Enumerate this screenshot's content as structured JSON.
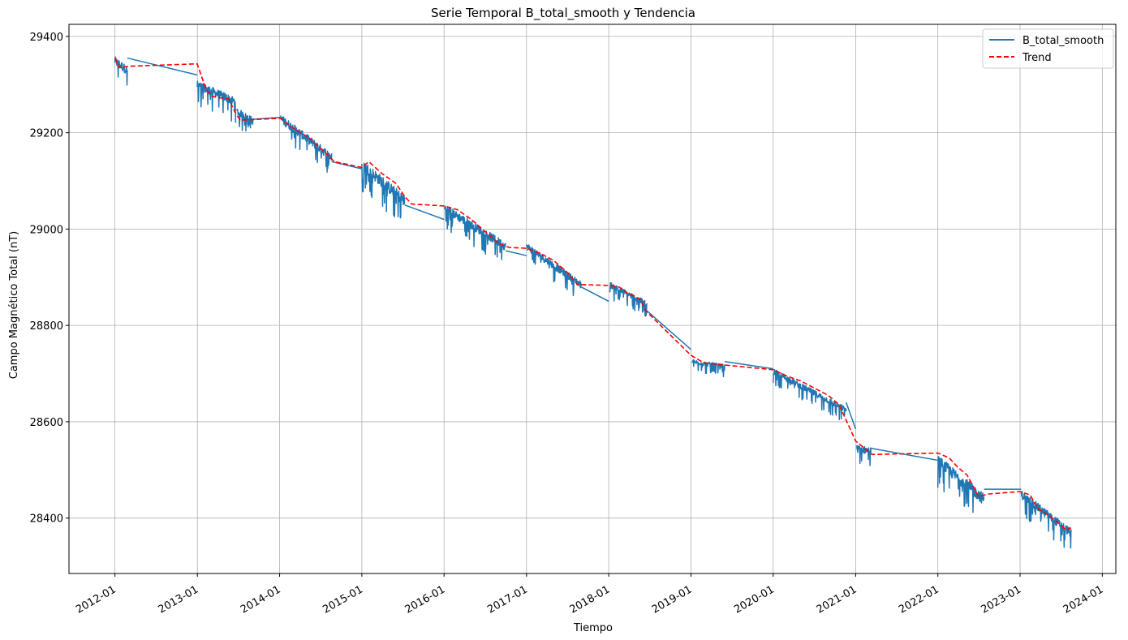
{
  "chart_data": {
    "type": "line",
    "title": "Serie Temporal B_total_smooth y Tendencia",
    "xlabel": "Tiempo",
    "ylabel": "Campo Magnético Total (nT)",
    "x_type": "date",
    "xlim": [
      "2011-06-11",
      "2024-03-01"
    ],
    "ylim": [
      28285,
      29425
    ],
    "x_ticks": [
      "2012-01",
      "2013-01",
      "2014-01",
      "2015-01",
      "2016-01",
      "2017-01",
      "2018-01",
      "2019-01",
      "2020-01",
      "2021-01",
      "2022-01",
      "2023-01",
      "2024-01"
    ],
    "y_ticks": [
      28400,
      28600,
      28800,
      29000,
      29200,
      29400
    ],
    "grid": true,
    "legend": "top-right",
    "series": [
      {
        "name": "B_total_smooth",
        "color": "#1f77b4",
        "style": "solid",
        "segments": [
          {
            "start": "2012-01-01",
            "end": "2012-02-25",
            "y_start": 29350,
            "y_end": 29330,
            "noise": 30
          },
          {
            "start": "2012-12-31",
            "end": "2013-06-20",
            "y_start": 29300,
            "y_end": 29265,
            "noise": 30
          },
          {
            "start": "2013-06-25",
            "end": "2013-09-05",
            "y_start": 29245,
            "y_end": 29225,
            "noise": 25
          },
          {
            "start": "2014-01-06",
            "end": "2014-08-20",
            "y_start": 29230,
            "y_end": 29150,
            "noise": 30
          },
          {
            "start": "2015-01-01",
            "end": "2015-07-10",
            "y_start": 29135,
            "y_end": 29060,
            "noise": 40
          },
          {
            "start": "2016-01-01",
            "end": "2016-09-30",
            "y_start": 29045,
            "y_end": 28965,
            "noise": 30
          },
          {
            "start": "2017-01-01",
            "end": "2017-08-31",
            "y_start": 28965,
            "y_end": 28885,
            "noise": 25
          },
          {
            "start": "2018-01-06",
            "end": "2018-06-20",
            "y_start": 28885,
            "y_end": 28845,
            "noise": 20
          },
          {
            "start": "2019-01-06",
            "end": "2019-05-31",
            "y_start": 28725,
            "y_end": 28715,
            "noise": 15
          },
          {
            "start": "2020-01-01",
            "end": "2020-11-20",
            "y_start": 28705,
            "y_end": 28625,
            "noise": 20
          },
          {
            "start": "2021-01-06",
            "end": "2021-03-10",
            "y_start": 28545,
            "y_end": 28540,
            "noise": 25
          },
          {
            "start": "2022-01-01",
            "end": "2022-07-25",
            "y_start": 28520,
            "y_end": 28440,
            "noise": 40
          },
          {
            "start": "2023-01-06",
            "end": "2023-08-15",
            "y_start": 28450,
            "y_end": 28370,
            "noise": 30
          }
        ],
        "connections": [
          {
            "from": [
              "2012-02-25",
              29355
            ],
            "to": [
              "2012-12-31",
              29320
            ]
          },
          {
            "from": [
              "2013-09-05",
              29228
            ],
            "to": [
              "2014-01-06",
              29232
            ]
          },
          {
            "from": [
              "2014-08-20",
              29140
            ],
            "to": [
              "2015-01-01",
              29125
            ]
          },
          {
            "from": [
              "2015-07-10",
              29050
            ],
            "to": [
              "2016-01-01",
              29020
            ]
          },
          {
            "from": [
              "2016-09-30",
              28955
            ],
            "to": [
              "2017-01-01",
              28945
            ]
          },
          {
            "from": [
              "2017-08-31",
              28880
            ],
            "to": [
              "2018-01-01",
              28850
            ]
          },
          {
            "from": [
              "2018-06-20",
              28830
            ],
            "to": [
              "2019-01-01",
              28750
            ]
          },
          {
            "from": [
              "2019-05-31",
              28725
            ],
            "to": [
              "2020-01-01",
              28710
            ]
          },
          {
            "from": [
              "2020-11-20",
              28640
            ],
            "to": [
              "2021-01-01",
              28585
            ]
          },
          {
            "from": [
              "2021-03-10",
              28545
            ],
            "to": [
              "2022-01-01",
              28520
            ]
          },
          {
            "from": [
              "2022-07-25",
              28460
            ],
            "to": [
              "2023-01-06",
              28460
            ]
          }
        ]
      },
      {
        "name": "Trend",
        "color": "#ff0000",
        "style": "dashed",
        "points": [
          [
            "2012-01-01",
            29355
          ],
          [
            "2012-01-20",
            29335
          ],
          [
            "2012-03-01",
            29338
          ],
          [
            "2012-12-31",
            29343
          ],
          [
            "2013-02-10",
            29288
          ],
          [
            "2013-03-10",
            29275
          ],
          [
            "2013-05-20",
            29270
          ],
          [
            "2013-06-20",
            29240
          ],
          [
            "2013-07-10",
            29226
          ],
          [
            "2014-01-06",
            29230
          ],
          [
            "2014-03-01",
            29210
          ],
          [
            "2014-05-10",
            29190
          ],
          [
            "2014-07-20",
            29160
          ],
          [
            "2014-09-01",
            29140
          ],
          [
            "2015-01-01",
            29128
          ],
          [
            "2015-02-01",
            29140
          ],
          [
            "2015-04-01",
            29115
          ],
          [
            "2015-06-01",
            29095
          ],
          [
            "2015-07-10",
            29068
          ],
          [
            "2015-08-10",
            29052
          ],
          [
            "2016-01-01",
            29048
          ],
          [
            "2016-03-01",
            29040
          ],
          [
            "2016-05-01",
            29020
          ],
          [
            "2016-07-01",
            28995
          ],
          [
            "2016-09-01",
            28970
          ],
          [
            "2016-10-15",
            28962
          ],
          [
            "2017-01-01",
            28960
          ],
          [
            "2017-03-01",
            28950
          ],
          [
            "2017-05-01",
            28935
          ],
          [
            "2017-07-01",
            28910
          ],
          [
            "2017-08-15",
            28885
          ],
          [
            "2018-01-01",
            28883
          ],
          [
            "2018-02-15",
            28880
          ],
          [
            "2018-03-20",
            28868
          ],
          [
            "2018-05-20",
            28855
          ],
          [
            "2018-06-15",
            28830
          ],
          [
            "2019-01-01",
            28738
          ],
          [
            "2019-03-01",
            28722
          ],
          [
            "2020-01-01",
            28708
          ],
          [
            "2020-03-01",
            28695
          ],
          [
            "2020-05-01",
            28685
          ],
          [
            "2020-07-01",
            28670
          ],
          [
            "2020-09-01",
            28655
          ],
          [
            "2020-10-20",
            28635
          ],
          [
            "2021-01-01",
            28560
          ],
          [
            "2021-03-15",
            28532
          ],
          [
            "2022-01-01",
            28535
          ],
          [
            "2022-02-20",
            28525
          ],
          [
            "2022-04-01",
            28505
          ],
          [
            "2022-05-10",
            28490
          ],
          [
            "2022-07-01",
            28445
          ],
          [
            "2022-08-15",
            28450
          ],
          [
            "2023-01-01",
            28455
          ],
          [
            "2023-02-15",
            28448
          ],
          [
            "2023-03-20",
            28420
          ],
          [
            "2023-05-10",
            28405
          ],
          [
            "2023-06-20",
            28390
          ],
          [
            "2023-07-25",
            28375
          ],
          [
            "2023-08-15",
            28380
          ]
        ]
      }
    ]
  }
}
